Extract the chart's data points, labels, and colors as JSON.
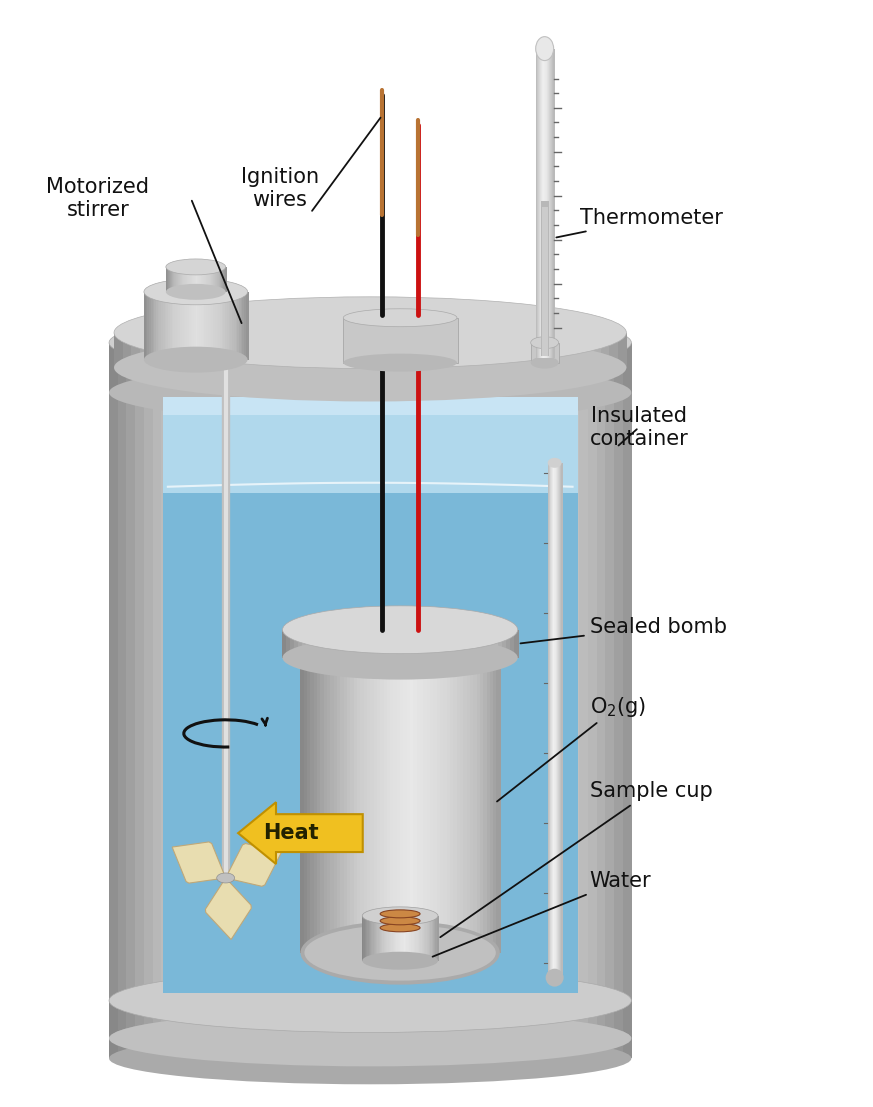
{
  "labels": {
    "motorized_stirrer": "Motorized\nstirrer",
    "ignition_wires": "Ignition\nwires",
    "thermometer": "Thermometer",
    "insulated_container": "Insulated\ncontainer",
    "sealed_bomb": "Sealed bomb",
    "o2": "O₂(g)",
    "sample_cup": "Sample cup",
    "water": "Water",
    "heat": "Heat"
  },
  "colors": {
    "background": "#ffffff",
    "text_color": "#111111",
    "wire_black": "#111111",
    "wire_red": "#cc1111",
    "wire_copper": "#b87333",
    "heat_arrow_fill": "#f0c020",
    "heat_arrow_edge": "#c09000",
    "propeller": "#e8ddb0",
    "propeller_edge": "#c0a878"
  },
  "figure_size": [
    8.73,
    11.07
  ],
  "dpi": 100
}
